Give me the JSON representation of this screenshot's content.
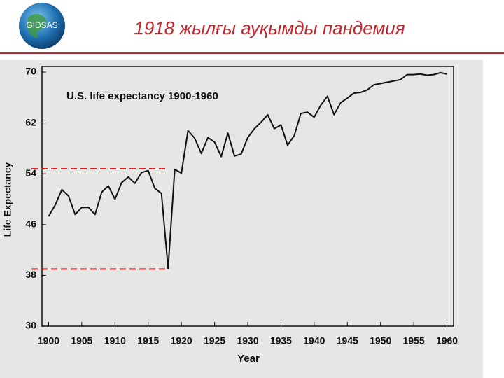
{
  "header": {
    "logo": "GIDSAS",
    "title": "1918 жылғы ауқымды пандемия"
  },
  "chart_data": {
    "type": "line",
    "title": "U.S. life expectancy 1900-1960",
    "x_label": "Year",
    "y_label": "Life Expectancy",
    "x": [
      1900,
      1901,
      1902,
      1903,
      1904,
      1905,
      1906,
      1907,
      1908,
      1909,
      1910,
      1911,
      1912,
      1913,
      1914,
      1915,
      1916,
      1917,
      1918,
      1919,
      1920,
      1921,
      1922,
      1923,
      1924,
      1925,
      1926,
      1927,
      1928,
      1929,
      1930,
      1931,
      1932,
      1933,
      1934,
      1935,
      1936,
      1937,
      1938,
      1939,
      1940,
      1941,
      1942,
      1943,
      1944,
      1945,
      1946,
      1947,
      1948,
      1949,
      1950,
      1951,
      1952,
      1953,
      1954,
      1955,
      1956,
      1957,
      1958,
      1959,
      1960
    ],
    "values": [
      47.3,
      49.1,
      51.5,
      50.5,
      47.6,
      48.7,
      48.7,
      47.6,
      51.1,
      52.1,
      50.0,
      52.6,
      53.5,
      52.5,
      54.2,
      54.5,
      51.7,
      50.9,
      39.1,
      54.7,
      54.1,
      60.8,
      59.6,
      57.2,
      59.7,
      59.0,
      56.7,
      60.4,
      56.8,
      57.1,
      59.7,
      61.1,
      62.1,
      63.3,
      61.1,
      61.7,
      58.5,
      60.0,
      63.5,
      63.7,
      62.9,
      64.8,
      66.2,
      63.3,
      65.2,
      65.9,
      66.7,
      66.8,
      67.2,
      68.0,
      68.2,
      68.4,
      68.6,
      68.8,
      69.6,
      69.6,
      69.7,
      69.5,
      69.6,
      69.9,
      69.7
    ],
    "color": "#111111",
    "xlim": [
      1899,
      1961
    ],
    "xticks": [
      1900,
      1905,
      1910,
      1915,
      1920,
      1925,
      1930,
      1935,
      1940,
      1945,
      1950,
      1955,
      1960
    ],
    "ylim": [
      30,
      70
    ],
    "yticks": [
      30,
      38,
      46,
      54,
      62,
      70
    ],
    "reference_lines": [
      54.8,
      39
    ],
    "reference_color": "#e02020"
  }
}
